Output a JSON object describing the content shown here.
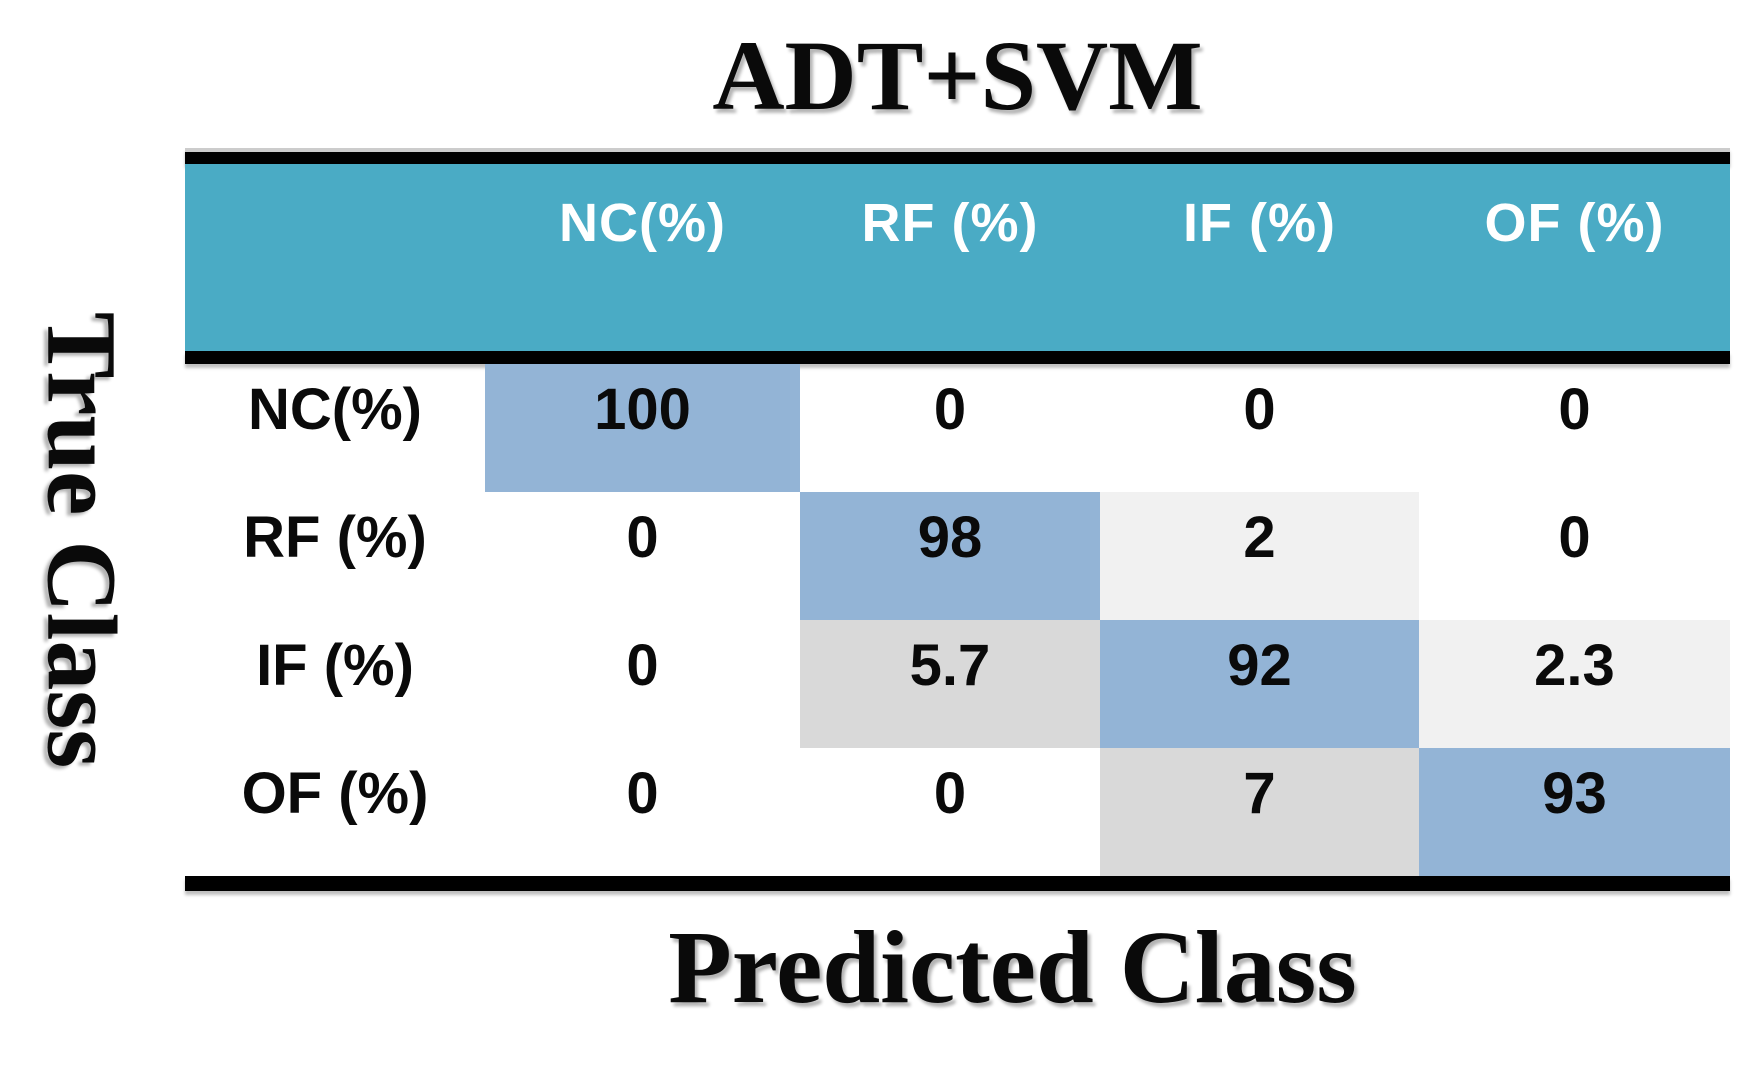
{
  "title": "ADT+SVM",
  "axis": {
    "y_label": "True Class",
    "x_label": "Predicted Class"
  },
  "colors": {
    "background": "#FFFFFF",
    "header_bg": "#4AABC5",
    "header_text": "#FFFFFF",
    "diagonal_cell_blue": "#93B4D6",
    "confusion_cell_gray": "#D9D9D9",
    "confusion_cell_light_gray": "#F1F1F1",
    "rule_line": "#000000",
    "text": "#0A0A0A"
  },
  "chart_data": {
    "type": "heatmap",
    "title": "ADT+SVM",
    "xlabel": "Predicted Class",
    "ylabel": "True Class",
    "columns": [
      "NC(%)",
      "RF (%)",
      "IF (%)",
      "OF (%)"
    ],
    "rows": [
      "NC(%)",
      "RF (%)",
      "IF (%)",
      "OF (%)"
    ],
    "values": [
      [
        100,
        0,
        0,
        0
      ],
      [
        0,
        98,
        2,
        0
      ],
      [
        0,
        5.7,
        92,
        2.3
      ],
      [
        0,
        0,
        7,
        93
      ]
    ],
    "legend_position": "none",
    "grid": false
  },
  "matrix": {
    "header": [
      "NC(%)",
      "RF (%)",
      "IF (%)",
      "OF (%)"
    ],
    "rows": [
      {
        "label": "NC(%)",
        "cells": [
          {
            "value": "100",
            "tone": "diag"
          },
          {
            "value": "0",
            "tone": "none"
          },
          {
            "value": "0",
            "tone": "none"
          },
          {
            "value": "0",
            "tone": "none"
          }
        ]
      },
      {
        "label": "RF (%)",
        "cells": [
          {
            "value": "0",
            "tone": "none"
          },
          {
            "value": "98",
            "tone": "diag"
          },
          {
            "value": "2",
            "tone": "light"
          },
          {
            "value": "0",
            "tone": "none"
          }
        ]
      },
      {
        "label": "IF (%)",
        "cells": [
          {
            "value": "0",
            "tone": "none"
          },
          {
            "value": "5.7",
            "tone": "strong"
          },
          {
            "value": "92",
            "tone": "diag"
          },
          {
            "value": "2.3",
            "tone": "light"
          }
        ]
      },
      {
        "label": "OF (%)",
        "cells": [
          {
            "value": "0",
            "tone": "none"
          },
          {
            "value": "0",
            "tone": "none"
          },
          {
            "value": "7",
            "tone": "strong"
          },
          {
            "value": "93",
            "tone": "diag"
          }
        ]
      }
    ]
  }
}
